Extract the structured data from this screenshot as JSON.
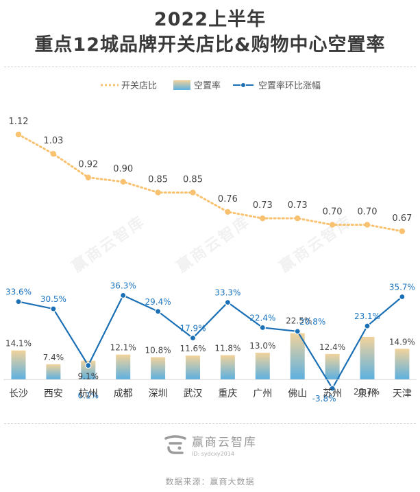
{
  "title_line1": "2022上半年",
  "title_line2": "重点12城品牌开关店比&购物中心空置率",
  "brand": {
    "name": "赢商云智库",
    "id": "ID: sydcxy2014",
    "logo_icon": "yingshang-logo-icon"
  },
  "watermark": "赢商云智库",
  "source": "数据来源：赢商大数据",
  "colors": {
    "ratio": "#f8c271",
    "bar_top": "#f2d39b",
    "bar_bottom": "#5cb0e0",
    "change": "#1a6fb5",
    "change_label": "#1a74c0"
  },
  "chart_data": {
    "type": "bar",
    "categories": [
      "长沙",
      "西安",
      "杭州",
      "成都",
      "深圳",
      "武汉",
      "重庆",
      "广州",
      "佛山",
      "苏州",
      "泉州",
      "天津"
    ],
    "legend": [
      "开关店比",
      "空置率",
      "空置率环比涨幅"
    ],
    "series": [
      {
        "name": "开关店比",
        "type": "line",
        "values": [
          1.12,
          1.03,
          0.92,
          0.9,
          0.85,
          0.85,
          0.76,
          0.73,
          0.73,
          0.7,
          0.7,
          0.67
        ],
        "labels": [
          "1.12",
          "1.03",
          "0.92",
          "0.90",
          "0.85",
          "0.85",
          "0.76",
          "0.73",
          "0.73",
          "0.70",
          "0.70",
          "0.67"
        ]
      },
      {
        "name": "空置率",
        "type": "bar",
        "unit": "%",
        "values": [
          14.1,
          7.4,
          9.1,
          12.1,
          10.8,
          11.6,
          11.8,
          13.0,
          22.5,
          12.4,
          20.7,
          14.9
        ],
        "labels": [
          "14.1%",
          "7.4%",
          "9.1%",
          "12.1%",
          "10.8%",
          "11.6%",
          "11.8%",
          "13.0%",
          "22.5%",
          "12.4%",
          "20.7%",
          "14.9%"
        ]
      },
      {
        "name": "空置率环比涨幅",
        "type": "line",
        "unit": "%",
        "values": [
          33.6,
          30.5,
          6.1,
          36.3,
          29.4,
          17.9,
          33.3,
          22.4,
          20.8,
          -3.8,
          23.1,
          35.7
        ],
        "labels": [
          "33.6%",
          "30.5%",
          "6.1%",
          "36.3%",
          "29.4%",
          "17.9%",
          "33.3%",
          "22.4%",
          "20.8%",
          "-3.8%",
          "23.1%",
          "35.7%"
        ]
      }
    ]
  }
}
